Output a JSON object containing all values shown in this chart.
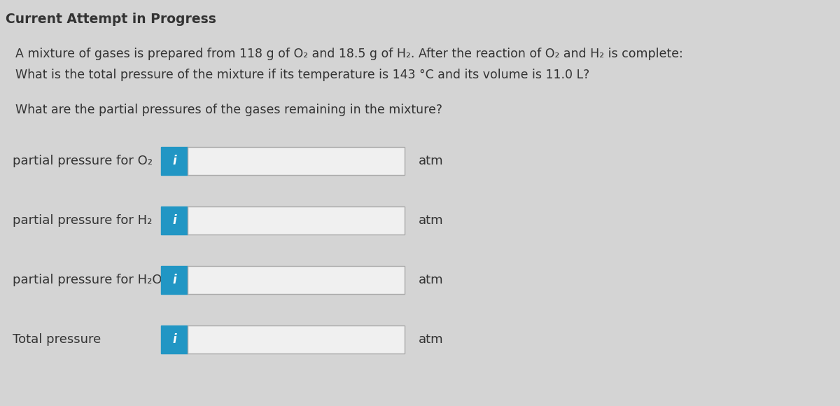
{
  "background_color": "#d4d4d4",
  "title": "Current Attempt in Progress",
  "title_fontsize": 13.5,
  "problem_text_line1": "A mixture of gases is prepared from 118 g of O₂ and 18.5 g of H₂. After the reaction of O₂ and H₂ is complete:",
  "problem_text_line2": "What is the total pressure of the mixture if its temperature is 143 °C and its volume is 11.0 L?",
  "partial_pressure_question": "What are the partial pressures of the gases remaining in the mixture?",
  "rows": [
    {
      "label": "partial pressure for O₂",
      "unit": "atm"
    },
    {
      "label": "partial pressure for H₂",
      "unit": "atm"
    },
    {
      "label": "partial pressure for H₂O",
      "unit": "atm"
    },
    {
      "label": "Total pressure",
      "unit": "atm"
    }
  ],
  "button_color": "#2196c4",
  "button_text": "i",
  "button_text_color": "#ffffff",
  "input_box_color": "#f0f0f0",
  "input_box_border": "#aaaaaa",
  "text_color": "#333333",
  "label_fontsize": 13,
  "unit_fontsize": 13,
  "text_fontsize": 12.5
}
